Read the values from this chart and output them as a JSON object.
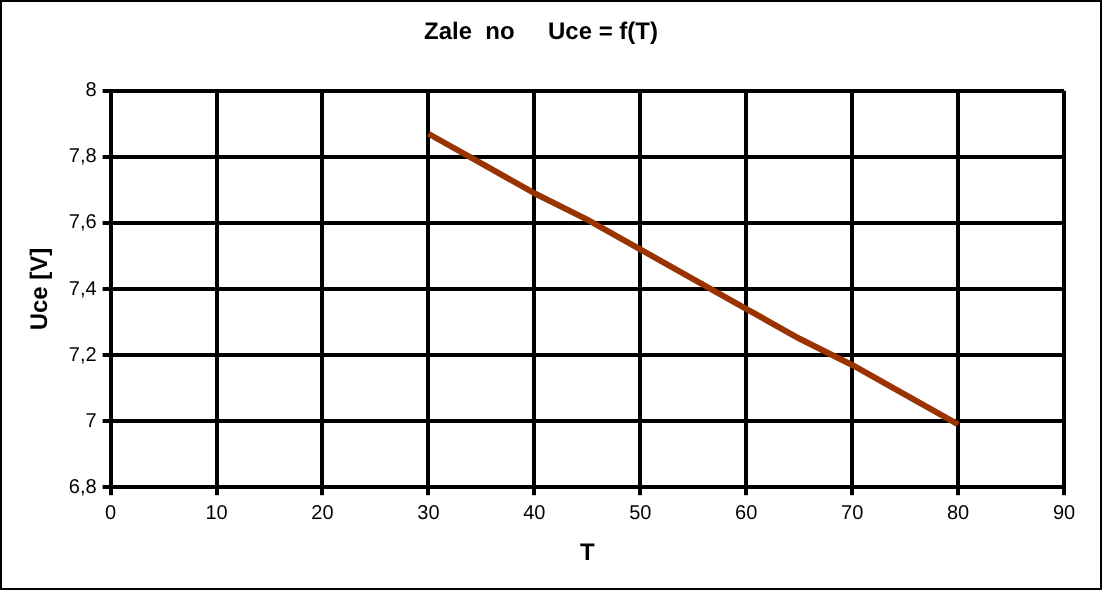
{
  "chart_data": {
    "type": "line",
    "title": "Zale  no     Uce = f(T)",
    "xlabel": "T",
    "ylabel": "Uce [V]",
    "series": [
      {
        "color": "#993300",
        "x": [
          30,
          35,
          40,
          45,
          50,
          55,
          60,
          65,
          70,
          75,
          80
        ],
        "values": [
          7.87,
          7.78,
          7.69,
          7.61,
          7.52,
          7.43,
          7.34,
          7.25,
          7.17,
          7.08,
          6.99
        ]
      }
    ],
    "xlim": [
      0,
      90
    ],
    "xticks": [
      0,
      10,
      20,
      30,
      40,
      50,
      60,
      70,
      80,
      90
    ],
    "ylim": [
      6.8,
      8
    ],
    "yticks": [
      {
        "value": 6.8,
        "label": "6,8"
      },
      {
        "value": 7,
        "label": "7"
      },
      {
        "value": 7.2,
        "label": "7,2"
      },
      {
        "value": 7.4,
        "label": "7,4"
      },
      {
        "value": 7.6,
        "label": "7,6"
      },
      {
        "value": 7.8,
        "label": "7,8"
      },
      {
        "value": 8,
        "label": "8"
      }
    ],
    "grid": true,
    "legend": false,
    "marker": "none",
    "line_style": "solid"
  }
}
